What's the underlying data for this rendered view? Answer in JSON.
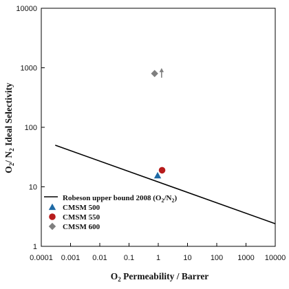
{
  "chart_data": {
    "type": "scatter",
    "title": "",
    "xscale": "log",
    "yscale": "log",
    "xlim": [
      0.0001,
      10000
    ],
    "ylim": [
      1,
      10000
    ],
    "x_ticks": [
      {
        "value": 0.0001,
        "label": "0.0001"
      },
      {
        "value": 0.001,
        "label": "0.001"
      },
      {
        "value": 0.01,
        "label": "0.01"
      },
      {
        "value": 0.1,
        "label": "0.1"
      },
      {
        "value": 1,
        "label": "1"
      },
      {
        "value": 10,
        "label": "10"
      },
      {
        "value": 100,
        "label": "100"
      },
      {
        "value": 1000,
        "label": "1000"
      },
      {
        "value": 10000,
        "label": "10000"
      }
    ],
    "y_ticks": [
      {
        "value": 1,
        "label": "1"
      },
      {
        "value": 10,
        "label": "10"
      },
      {
        "value": 100,
        "label": "100"
      },
      {
        "value": 1000,
        "label": "1000"
      },
      {
        "value": 10000,
        "label": "10000"
      }
    ],
    "xlabel": {
      "main": "O",
      "sub": "2",
      "rest": " Permeability / Barrer"
    },
    "ylabel": {
      "p1": "O",
      "s1": "2",
      "p2": "/ N",
      "s2": "2",
      "p3": " Ideal Selectivity"
    },
    "grid": false,
    "legend_position": "bottom-left",
    "robeson": {
      "label_main": "Robeson upper bound 2008 (O",
      "label_sub1": "2",
      "label_mid": "/N",
      "label_sub2": "2",
      "label_end": ")",
      "x": [
        0.0003,
        10000
      ],
      "y": [
        50,
        2.4
      ],
      "color": "#000000"
    },
    "series": [
      {
        "name": "CMSM 500",
        "marker": "triangle",
        "color": "#1f6aa5",
        "points": [
          {
            "x": 0.95,
            "y": 15.5
          }
        ]
      },
      {
        "name": "CMSM 550",
        "marker": "circle",
        "color": "#b71c1c",
        "points": [
          {
            "x": 1.35,
            "y": 19
          }
        ]
      },
      {
        "name": "CMSM 600",
        "marker": "diamond",
        "color": "#7f7f7f",
        "points": [
          {
            "x": 0.75,
            "y": 800
          }
        ]
      }
    ],
    "annotation": {
      "type": "up-arrow",
      "x": 1.3,
      "y": 800,
      "color": "#7f7f7f"
    }
  }
}
